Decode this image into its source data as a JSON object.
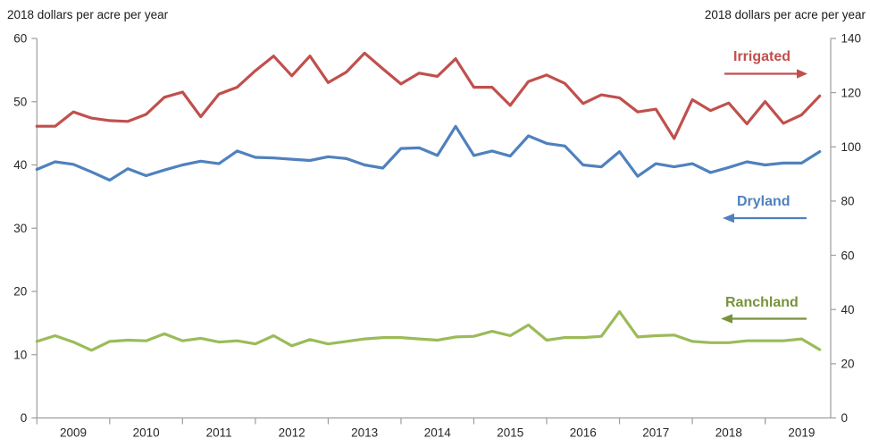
{
  "titles": {
    "left_axis_title": "2018 dollars per acre per year",
    "right_axis_title": "2018 dollars per acre per year"
  },
  "series_labels": {
    "irrigated": "Irrigated",
    "dryland": "Dryland",
    "ranchland": "Ranchland"
  },
  "colors": {
    "irrigated": "#C0504D",
    "dryland": "#4F81BD",
    "ranchland_line": "#9BBB59",
    "ranchland_label": "#77933C",
    "axis": "#9D9D9D",
    "tick_text": "#262626"
  },
  "chart_data": {
    "type": "line",
    "frequency": "quarterly",
    "x_range": [
      "2009Q1",
      "2019Q4"
    ],
    "x_year_labels": [
      "2009",
      "2010",
      "2011",
      "2012",
      "2013",
      "2014",
      "2015",
      "2016",
      "2017",
      "2018",
      "2019"
    ],
    "left_axis": {
      "label": "2018 dollars per acre per year",
      "min": 0,
      "max": 60,
      "ticks": [
        0,
        10,
        20,
        30,
        40,
        50,
        60
      ]
    },
    "right_axis": {
      "label": "2018 dollars per acre per year",
      "min": 0,
      "max": 140,
      "ticks": [
        0,
        20,
        40,
        60,
        80,
        100,
        120,
        140
      ]
    },
    "grid": false,
    "series": [
      {
        "name": "Irrigated",
        "axis": "right",
        "color": "#C0504D",
        "values": [
          107.6,
          107.6,
          112.9,
          110.6,
          109.7,
          109.4,
          112.0,
          118.3,
          120.2,
          111.1,
          119.5,
          122.0,
          128.1,
          133.5,
          126.2,
          133.5,
          123.7,
          127.6,
          134.6,
          128.8,
          123.2,
          127.2,
          126.0,
          132.5,
          122.0,
          122.0,
          115.3,
          124.1,
          126.5,
          123.4,
          116.0,
          119.2,
          118.1,
          112.9,
          113.9,
          103.1,
          117.4,
          113.4,
          116.2,
          108.5,
          116.7,
          108.7,
          111.8,
          118.8
        ]
      },
      {
        "name": "Dryland",
        "axis": "left",
        "color": "#4F81BD",
        "values": [
          39.3,
          40.5,
          40.1,
          38.9,
          37.6,
          39.4,
          38.3,
          39.2,
          40.0,
          40.6,
          40.2,
          42.2,
          41.2,
          41.1,
          40.9,
          40.7,
          41.3,
          41.0,
          40.0,
          39.5,
          42.6,
          42.7,
          41.5,
          46.1,
          41.5,
          42.2,
          41.4,
          44.6,
          43.4,
          43.0,
          40.0,
          39.7,
          42.1,
          38.2,
          40.2,
          39.7,
          40.2,
          38.8,
          39.6,
          40.5,
          40.0,
          40.3,
          40.3,
          42.1
        ]
      },
      {
        "name": "Ranchland",
        "axis": "left",
        "color": "#9BBB59",
        "values": [
          12.1,
          13.0,
          12.0,
          10.7,
          12.1,
          12.3,
          12.2,
          13.3,
          12.2,
          12.6,
          12.0,
          12.2,
          11.7,
          13.0,
          11.4,
          12.4,
          11.7,
          12.1,
          12.5,
          12.7,
          12.7,
          12.5,
          12.3,
          12.8,
          12.9,
          13.7,
          13.0,
          14.7,
          12.3,
          12.7,
          12.7,
          12.9,
          16.8,
          12.8,
          13.0,
          13.1,
          12.1,
          11.9,
          11.9,
          12.2,
          12.2,
          12.2,
          12.5,
          10.8
        ]
      }
    ],
    "annotations": [
      {
        "id": "irrigated",
        "label": "Irrigated",
        "color": "#C0504D",
        "arrow_direction": "right"
      },
      {
        "id": "dryland",
        "label": "Dryland",
        "color": "#4F81BD",
        "arrow_direction": "left"
      },
      {
        "id": "ranchland",
        "label": "Ranchland",
        "color": "#77933C",
        "arrow_direction": "left"
      }
    ]
  }
}
